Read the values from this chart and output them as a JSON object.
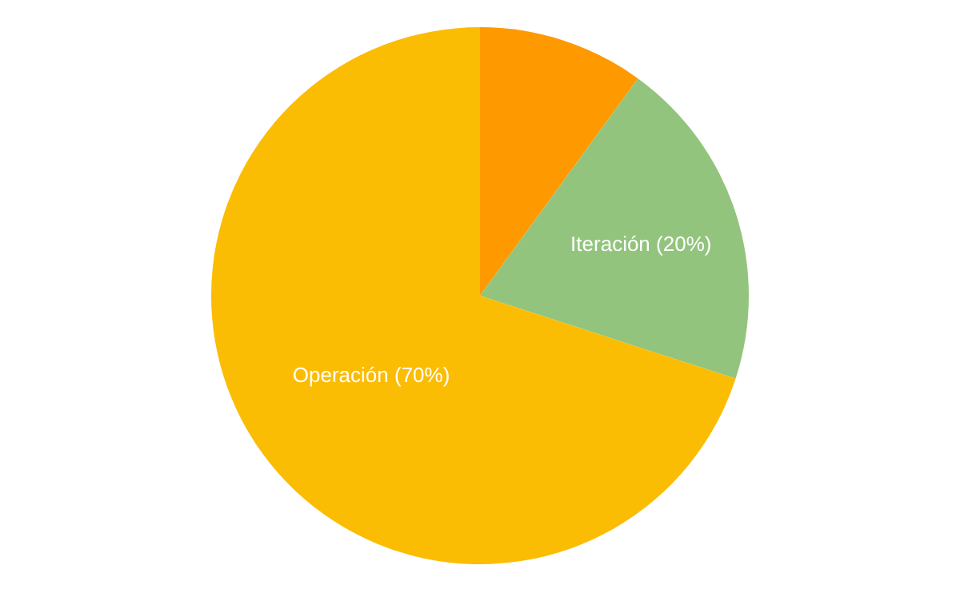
{
  "chart_data": {
    "type": "pie",
    "categories": [
      null,
      "Iteración (20%)",
      "Operación (70%)"
    ],
    "values": [
      10,
      20,
      70
    ],
    "colors": [
      "#ff9900",
      "#93c47d",
      "#fbbc04"
    ],
    "legend": false
  }
}
